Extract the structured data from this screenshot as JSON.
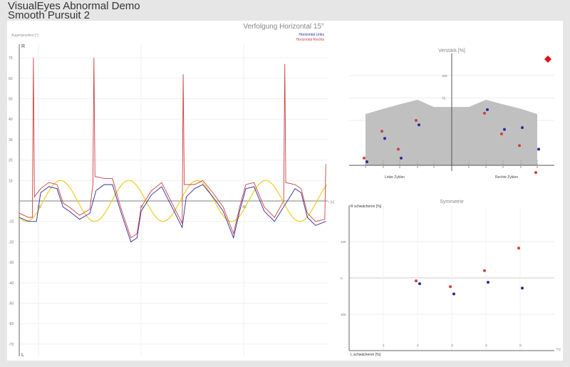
{
  "header": {
    "line1": "VisualEyes Abnormal Demo",
    "line2": "Smooth Pursuit 2"
  },
  "colors": {
    "left": "#2b2b9a",
    "right": "#d04040",
    "target": "#f0d030",
    "band": "#c0c0c0",
    "marker": "#e01010"
  },
  "chart_data": [
    {
      "type": "line",
      "title": "Verfolgung Horizontal 15°",
      "ylabel": "Augenposition [°]",
      "xlabel": "t [s]",
      "y_top_label": "R",
      "y_bottom_label": "L",
      "xlim": [
        29.06,
        44.1
      ],
      "ylim": [
        -75,
        75
      ],
      "xticks": [
        30,
        35,
        40
      ],
      "xtick_labels": [
        "30",
        "35",
        "40"
      ],
      "yticks": [
        70,
        60,
        50,
        40,
        30,
        20,
        10,
        -10,
        -20,
        -30,
        -40,
        -50,
        -60,
        -70
      ],
      "yticks_labels": [
        "70",
        "60",
        "50",
        "40",
        "30",
        "20",
        "10",
        "-10",
        "-20",
        "-30",
        "-40",
        "-50",
        "-60",
        "-70"
      ],
      "legend": [
        "Horizontal Links",
        "Horizontal Rechts"
      ],
      "target": {
        "amplitude": 10,
        "frequency_hz": 0.3,
        "peak_time": 31.07
      },
      "series": [
        {
          "name": "Horizontal Links",
          "points": [
            [
              29.06,
              -8
            ],
            [
              29.5,
              -10
            ],
            [
              29.9,
              -10
            ],
            [
              30.1,
              4
            ],
            [
              30.5,
              7
            ],
            [
              30.9,
              6
            ],
            [
              31.2,
              -3
            ],
            [
              31.5,
              -5
            ],
            [
              32,
              -9
            ],
            [
              32.5,
              -6
            ],
            [
              32.8,
              5
            ],
            [
              33.2,
              8
            ],
            [
              33.6,
              8
            ],
            [
              34,
              -5
            ],
            [
              34.5,
              -20
            ],
            [
              34.8,
              -18
            ],
            [
              35,
              -5
            ],
            [
              35.5,
              3
            ],
            [
              36,
              7
            ],
            [
              36.5,
              -3
            ],
            [
              37,
              -13
            ],
            [
              37.2,
              2
            ],
            [
              37.6,
              6
            ],
            [
              38,
              8
            ],
            [
              38.5,
              2
            ],
            [
              39,
              -5
            ],
            [
              39.5,
              -18
            ],
            [
              39.8,
              -5
            ],
            [
              40.1,
              6
            ],
            [
              40.5,
              7
            ],
            [
              41,
              -5
            ],
            [
              41.5,
              -10
            ],
            [
              42,
              -2
            ],
            [
              42.5,
              6
            ],
            [
              42.8,
              4
            ],
            [
              43.1,
              -8
            ],
            [
              43.5,
              -12
            ],
            [
              44,
              -10
            ]
          ]
        },
        {
          "name": "Horizontal Rechts",
          "points": [
            [
              29.06,
              -6
            ],
            [
              29.5,
              -8
            ],
            [
              29.7,
              -8
            ],
            [
              29.75,
              70
            ],
            [
              29.8,
              2
            ],
            [
              30.1,
              6
            ],
            [
              30.5,
              9
            ],
            [
              30.9,
              8
            ],
            [
              31.2,
              -1
            ],
            [
              31.5,
              -3
            ],
            [
              32,
              -7
            ],
            [
              32.5,
              -4
            ],
            [
              32.65,
              8
            ],
            [
              32.7,
              70
            ],
            [
              32.75,
              12
            ],
            [
              33.2,
              11
            ],
            [
              33.6,
              11
            ],
            [
              34,
              -3
            ],
            [
              34.5,
              -18
            ],
            [
              34.8,
              -16
            ],
            [
              35,
              -3
            ],
            [
              35.5,
              5
            ],
            [
              36,
              9
            ],
            [
              36.5,
              -1
            ],
            [
              37,
              -11
            ],
            [
              37.05,
              62
            ],
            [
              37.1,
              8
            ],
            [
              37.6,
              8
            ],
            [
              38,
              10
            ],
            [
              38.5,
              4
            ],
            [
              39,
              -3
            ],
            [
              39.5,
              -16
            ],
            [
              39.8,
              -3
            ],
            [
              40.1,
              8
            ],
            [
              40.5,
              9
            ],
            [
              41,
              -3
            ],
            [
              41.5,
              -8
            ],
            [
              41.95,
              0
            ],
            [
              42,
              67
            ],
            [
              42.05,
              9
            ],
            [
              42.5,
              8
            ],
            [
              42.8,
              6
            ],
            [
              43.1,
              -6
            ],
            [
              43.5,
              -10
            ],
            [
              43.95,
              -9
            ],
            [
              44,
              18
            ]
          ]
        }
      ]
    },
    {
      "type": "scatter",
      "title": "Verstärk.[%]",
      "xgroups": [
        "Linke Zyklen",
        "Rechte Zyklen"
      ],
      "xtick_labels": [
        ".5",
        ".4",
        ".3",
        ".2",
        ".1",
        ".1",
        ".2",
        ".3",
        ".4",
        ".5"
      ],
      "yticks": [
        50,
        75,
        100
      ],
      "ytick_labels": [
        "50",
        "75",
        "100"
      ],
      "ylim": [
        0,
        125
      ],
      "normal_band_upper": [
        57,
        63,
        68,
        73,
        65,
        65,
        73,
        68,
        63,
        57
      ],
      "series": [
        {
          "name": "Rechts",
          "values": [
            8,
            38,
            18,
            50,
            58,
            35,
            22,
            -8
          ]
        },
        {
          "name": "Links",
          "values": [
            4,
            30,
            8,
            45,
            62,
            40,
            42,
            18
          ]
        }
      ],
      "point_positions": [
        ".5L",
        ".4L",
        ".3L",
        ".2L",
        ".2R",
        ".3R",
        ".4R",
        ".5R"
      ]
    },
    {
      "type": "scatter",
      "title": "Symmetrie",
      "ylabel_top": "R schwächeren [%]",
      "ylabel_bottom": "L schwächeren [%]",
      "xunit": "Hz",
      "x": [
        0.2,
        0.3,
        0.4,
        0.5
      ],
      "xtick_labels": [
        ".1",
        ".2",
        ".3",
        ".4",
        ".5"
      ],
      "ytick_labels": [
        "100",
        "0",
        "100"
      ],
      "ylim": [
        -150,
        150
      ],
      "series": [
        {
          "name": "Rechts",
          "values": [
            -8,
            -24,
            20,
            82
          ]
        },
        {
          "name": "Links",
          "values": [
            -16,
            -44,
            -12,
            -28
          ]
        }
      ]
    }
  ]
}
